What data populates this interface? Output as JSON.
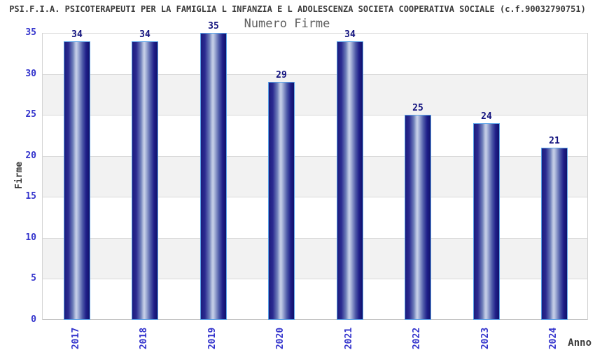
{
  "header": {
    "title": "PSI.F.I.A. PSICOTERAPEUTI PER LA FAMIGLIA L INFANZIA E L ADOLESCENZA SOCIETA COOPERATIVA SOCIALE (c.f.90032790751)",
    "subtitle": "Numero Firme"
  },
  "chart_data": {
    "type": "bar",
    "categories": [
      "2017",
      "2018",
      "2019",
      "2020",
      "2021",
      "2022",
      "2023",
      "2024"
    ],
    "values": [
      34,
      34,
      35,
      29,
      34,
      25,
      24,
      21
    ],
    "title": "Numero Firme",
    "xlabel": "Anno",
    "ylabel": "Firme",
    "ylim": [
      0,
      35
    ],
    "ytick_step": 5,
    "yticks": [
      0,
      5,
      10,
      15,
      20,
      25,
      30,
      35
    ],
    "grid": true,
    "legend": "none",
    "band_fill_ranges": [
      [
        5,
        10
      ],
      [
        15,
        20
      ],
      [
        25,
        30
      ]
    ]
  },
  "colors": {
    "tick_text": "#3333cc",
    "value_label_text": "#12127e",
    "title_text": "#3a3a3a",
    "subtitle_text": "#606060",
    "bar_border": "#5ba3e8",
    "bar_dark": "#1c1c7d",
    "bar_highlight": "#c6cfe8",
    "band_fill": "#f2f2f2",
    "gridline": "#d9d9d9"
  }
}
